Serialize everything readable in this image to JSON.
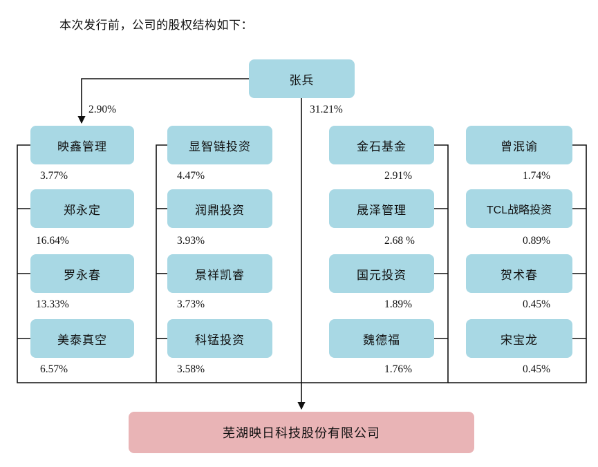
{
  "intro_text": "本次发行前，公司的股权结构如下：",
  "controller": {
    "name": "张兵",
    "pct_direct": "31.21%",
    "pct_to_yingxin": "2.90%"
  },
  "columns": [
    {
      "items": [
        {
          "name": "映鑫管理",
          "pct": "3.77%"
        },
        {
          "name": "郑永定",
          "pct": "16.64%"
        },
        {
          "name": "罗永春",
          "pct": "13.33%"
        },
        {
          "name": "美泰真空",
          "pct": "6.57%"
        }
      ]
    },
    {
      "items": [
        {
          "name": "显智链投资",
          "pct": "4.47%"
        },
        {
          "name": "润鼎投资",
          "pct": "3.93%"
        },
        {
          "name": "景祥凯睿",
          "pct": "3.73%"
        },
        {
          "name": "科锰投资",
          "pct": "3.58%"
        }
      ]
    },
    {
      "items": [
        {
          "name": "金石基金",
          "pct": "2.91%"
        },
        {
          "name": "晟泽管理",
          "pct": "2.68 %"
        },
        {
          "name": "国元投资",
          "pct": "1.89%"
        },
        {
          "name": "魏德福",
          "pct": "1.76%"
        }
      ]
    },
    {
      "items": [
        {
          "name": "曾泯谕",
          "pct": "1.74%"
        },
        {
          "name": "TCL战略投资",
          "pct": "0.89%"
        },
        {
          "name": "贺术春",
          "pct": "0.45%"
        },
        {
          "name": "宋宝龙",
          "pct": "0.45%"
        }
      ]
    }
  ],
  "company": {
    "name": "芜湖映日科技股份有限公司"
  },
  "colors": {
    "shareholder_box": "#a8d8e4",
    "company_box": "#e9b4b6",
    "line": "#111111"
  }
}
